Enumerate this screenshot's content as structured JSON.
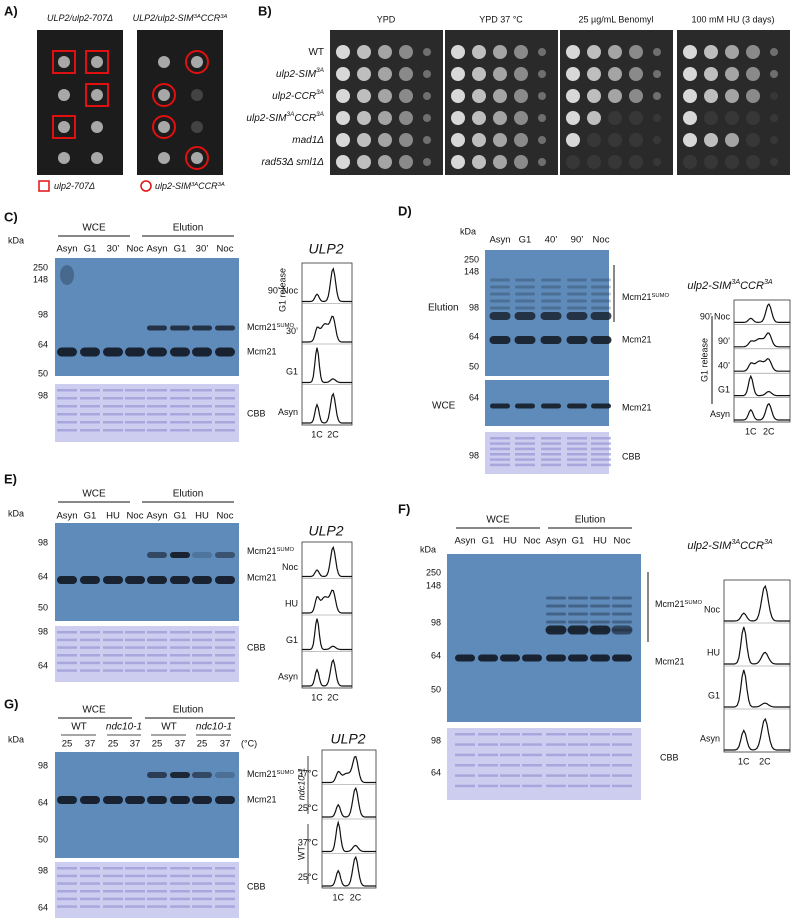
{
  "panels": {
    "a": {
      "label": "A)",
      "plates": [
        [
          "ULP2/ulp2-707Δ"
        ],
        [
          "ULP2/ulp2-SIM",
          "3A",
          "CCR",
          "3A"
        ]
      ],
      "legend": [
        [
          "ulp2-707Δ"
        ],
        [
          "ulp2-SIM",
          "3A",
          "CCR",
          "3A"
        ]
      ]
    },
    "b": {
      "label": "B)",
      "conditions": [
        "YPD",
        "YPD 37 °C",
        "25 µg/mL Benomyl",
        "100 mM HU (3 days)"
      ],
      "strains": [
        [
          "WT"
        ],
        [
          "ulp2-SIM",
          "3A"
        ],
        [
          "ulp2-CCR",
          "3A"
        ],
        [
          "ulp2-SIM",
          "3A",
          "CCR",
          "3A"
        ],
        [
          "mad1Δ"
        ],
        [
          "rad53Δ sml1Δ"
        ]
      ]
    },
    "c": {
      "label": "C)",
      "groups": [
        "WCE",
        "Elution"
      ],
      "lanes": [
        "Asyn",
        "G1",
        "30’",
        "Noc",
        "Asyn",
        "G1",
        "30’",
        "Noc"
      ],
      "kda": "kDa",
      "markers": [
        "250",
        "148",
        "98",
        "64",
        "50"
      ],
      "cbb_markers": [
        "98"
      ],
      "bands": [
        [
          "Mcm21",
          "SUMO"
        ],
        "Mcm21"
      ],
      "cbb": "CBB",
      "flow": {
        "title": "ULP2",
        "side": "G1 release",
        "rows": [
          "90’ Noc",
          "30’",
          "G1",
          "Asyn"
        ],
        "axis": [
          "1C",
          "2C"
        ]
      }
    },
    "d": {
      "label": "D)",
      "lanes": [
        "Asyn",
        "G1",
        "40’",
        "90’",
        "Noc"
      ],
      "kda": "kDa",
      "sections": [
        "Elution",
        "WCE"
      ],
      "markers": [
        "250",
        "148",
        "98",
        "64",
        "50"
      ],
      "wce_markers": [
        "64"
      ],
      "cbb_markers": [
        "98"
      ],
      "bands": [
        [
          "Mcm21",
          "SUMO"
        ],
        "Mcm21",
        "Mcm21"
      ],
      "cbb": "CBB",
      "flow": {
        "title": [
          "ulp2-SIM",
          "3A",
          "CCR",
          "3A"
        ],
        "side": "G1 release",
        "rows": [
          "90’ Noc",
          "90’",
          "40’",
          "G1",
          "Asyn"
        ],
        "axis": [
          "1C",
          "2C"
        ]
      }
    },
    "e": {
      "label": "E)",
      "groups": [
        "WCE",
        "Elution"
      ],
      "lanes": [
        "Asyn",
        "G1",
        "HU",
        "Noc",
        "Asyn",
        "G1",
        "HU",
        "Noc"
      ],
      "kda": "kDa",
      "markers": [
        "98",
        "64",
        "50"
      ],
      "cbb_markers": [
        "98",
        "64"
      ],
      "bands": [
        [
          "Mcm21",
          "SUMO"
        ],
        "Mcm21"
      ],
      "cbb": "CBB",
      "flow": {
        "title": "ULP2",
        "rows": [
          "Noc",
          "HU",
          "G1",
          "Asyn"
        ],
        "axis": [
          "1C",
          "2C"
        ]
      }
    },
    "f": {
      "label": "F)",
      "groups": [
        "WCE",
        "Elution"
      ],
      "lanes": [
        "Asyn",
        "G1",
        "HU",
        "Noc",
        "Asyn",
        "G1",
        "HU",
        "Noc"
      ],
      "kda": "kDa",
      "markers": [
        "250",
        "148",
        "98",
        "64",
        "50"
      ],
      "cbb_markers": [
        "98",
        "64"
      ],
      "bands": [
        [
          "Mcm21",
          "SUMO"
        ],
        "Mcm21"
      ],
      "cbb": "CBB",
      "flow": {
        "title": [
          "ulp2-SIM",
          "3A",
          "CCR",
          "3A"
        ],
        "rows": [
          "Noc",
          "HU",
          "G1",
          "Asyn"
        ],
        "axis": [
          "1C",
          "2C"
        ]
      }
    },
    "g": {
      "label": "G)",
      "groups": [
        "WCE",
        "Elution"
      ],
      "strains": [
        "WT",
        "ndc10-1",
        "WT",
        "ndc10-1"
      ],
      "temps": [
        "25",
        "37",
        "25",
        "37",
        "25",
        "37",
        "25",
        "37"
      ],
      "unit": "(°C)",
      "kda": "kDa",
      "markers": [
        "98",
        "64",
        "50"
      ],
      "cbb_markers": [
        "98",
        "64"
      ],
      "bands": [
        [
          "Mcm21",
          "SUMO"
        ],
        "Mcm21"
      ],
      "cbb": "CBB",
      "flow": {
        "title": "ULP2",
        "sides": [
          "ndc10-1",
          "WT"
        ],
        "rows": [
          "37°C",
          "25°C",
          "37°C",
          "25°C"
        ],
        "axis": [
          "1C",
          "2C"
        ]
      }
    }
  }
}
